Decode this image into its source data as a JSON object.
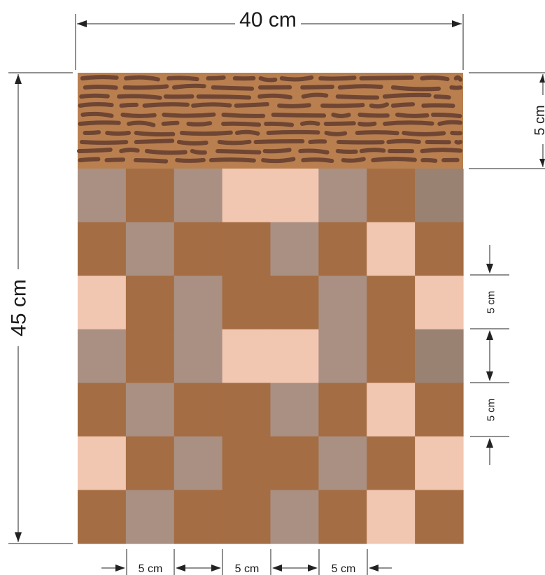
{
  "labels": {
    "total_width": "40 cm",
    "total_height": "45 cm",
    "top_band_height": "5 cm",
    "tile_height_a": "5 cm",
    "tile_height_b": "5 cm",
    "tile_width_a": "5 cm",
    "tile_width_b": "5 cm",
    "tile_width_c": "5 cm"
  },
  "colors": {
    "brown": "#a56d43",
    "gray": "#a99082",
    "pink": "#f2c7b1",
    "dark_gray": "#9a8272",
    "top_band_base": "#b97f4f",
    "top_band_pattern": "#6f4533"
  },
  "tile_grid": {
    "legend": "B = brown, G = gray, P = pink, D = dark gray",
    "rows": [
      [
        "G",
        "B",
        "G",
        "P",
        "P",
        "G",
        "B",
        "D"
      ],
      [
        "B",
        "G",
        "B",
        "B",
        "G",
        "B",
        "P",
        "B"
      ],
      [
        "P",
        "B",
        "G",
        "B",
        "B",
        "G",
        "B",
        "P"
      ],
      [
        "G",
        "B",
        "G",
        "P",
        "P",
        "G",
        "B",
        "D"
      ],
      [
        "B",
        "G",
        "B",
        "B",
        "G",
        "B",
        "P",
        "B"
      ],
      [
        "P",
        "B",
        "G",
        "B",
        "B",
        "G",
        "B",
        "P"
      ],
      [
        "B",
        "G",
        "B",
        "B",
        "G",
        "B",
        "P",
        "B"
      ]
    ]
  }
}
